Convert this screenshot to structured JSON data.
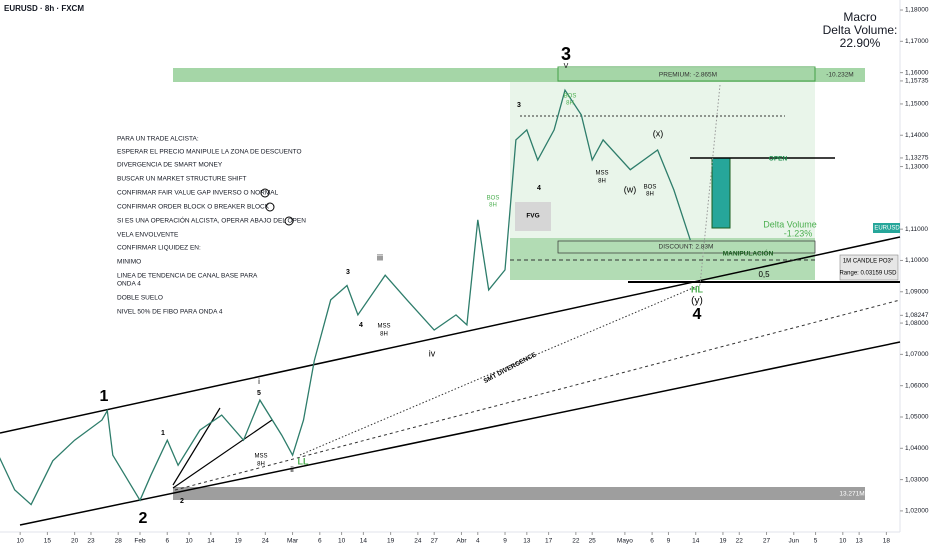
{
  "chart_data": {
    "type": "line",
    "title": "EURUSD · 8h · FXCM",
    "macro": [
      "Macro",
      "Delta Volume:",
      "22.90%"
    ],
    "xlim": [
      5.3,
      170.5
    ],
    "ylim": [
      1.0139,
      1.1832
    ],
    "xticks": [
      {
        "value": 9,
        "label": "10"
      },
      {
        "value": 14,
        "label": "15"
      },
      {
        "value": 19,
        "label": "20"
      },
      {
        "value": 22,
        "label": "23"
      },
      {
        "value": 27,
        "label": "28"
      },
      {
        "value": 31,
        "label": "Feb"
      },
      {
        "value": 36,
        "label": "6"
      },
      {
        "value": 40,
        "label": "10"
      },
      {
        "value": 44,
        "label": "14"
      },
      {
        "value": 49,
        "label": "19"
      },
      {
        "value": 54,
        "label": "24"
      },
      {
        "value": 59,
        "label": "Mar"
      },
      {
        "value": 64,
        "label": "6"
      },
      {
        "value": 68,
        "label": "10"
      },
      {
        "value": 72,
        "label": "14"
      },
      {
        "value": 77,
        "label": "19"
      },
      {
        "value": 82,
        "label": "24"
      },
      {
        "value": 85,
        "label": "27"
      },
      {
        "value": 90,
        "label": "Abr"
      },
      {
        "value": 93,
        "label": "4"
      },
      {
        "value": 98,
        "label": "9"
      },
      {
        "value": 102,
        "label": "13"
      },
      {
        "value": 106,
        "label": "17"
      },
      {
        "value": 111,
        "label": "22"
      },
      {
        "value": 114,
        "label": "25"
      },
      {
        "value": 120,
        "label": "Mayo"
      },
      {
        "value": 125,
        "label": "6"
      },
      {
        "value": 128,
        "label": "9"
      },
      {
        "value": 133,
        "label": "14"
      },
      {
        "value": 138,
        "label": "19"
      },
      {
        "value": 141,
        "label": "22"
      },
      {
        "value": 146,
        "label": "27"
      },
      {
        "value": 151,
        "label": "Jun"
      },
      {
        "value": 155,
        "label": "5"
      },
      {
        "value": 160,
        "label": "10"
      },
      {
        "value": 163,
        "label": "13"
      },
      {
        "value": 168,
        "label": "18"
      }
    ],
    "yticks": [
      {
        "value": 1.18,
        "label": "1,18000"
      },
      {
        "value": 1.17,
        "label": "1,17000"
      },
      {
        "value": 1.16,
        "label": "1,16000"
      },
      {
        "value": 1.15735,
        "label": "1,15735"
      },
      {
        "value": 1.15,
        "label": "1,15000"
      },
      {
        "value": 1.14,
        "label": "1,14000"
      },
      {
        "value": 1.13275,
        "label": "1,13275"
      },
      {
        "value": 1.13,
        "label": "1,13000"
      },
      {
        "value": 1.11,
        "label": "1,11000"
      },
      {
        "value": 1.1,
        "label": "1,10000"
      },
      {
        "value": 1.09,
        "label": "1,09000"
      },
      {
        "value": 1.08247,
        "label": "1,08247"
      },
      {
        "value": 1.08,
        "label": "1,08000"
      },
      {
        "value": 1.07,
        "label": "1,07000"
      },
      {
        "value": 1.06,
        "label": "1,06000"
      },
      {
        "value": 1.05,
        "label": "1,05000"
      },
      {
        "value": 1.04,
        "label": "1,04000"
      },
      {
        "value": 1.03,
        "label": "1,03000"
      },
      {
        "value": 1.02,
        "label": "1,02000"
      }
    ],
    "series": [
      {
        "name": "EURUSD",
        "color": "#2e7d6b",
        "x": [
          5,
          8,
          11,
          15,
          19,
          24,
          25,
          26,
          31,
          33,
          36,
          38,
          42,
          46,
          50,
          53,
          57,
          59,
          61,
          63,
          66,
          69,
          71,
          76,
          80,
          85,
          89,
          91,
          93,
          95,
          98,
          100,
          102,
          104,
          107,
          109,
          112,
          114,
          116,
          121,
          126,
          129,
          132
        ],
        "values": [
          1.0378,
          1.0267,
          1.022,
          1.036,
          1.0426,
          1.049,
          1.052,
          1.0378,
          1.0234,
          1.0314,
          1.0426,
          1.0346,
          1.0458,
          1.0506,
          1.0426,
          1.0554,
          1.0442,
          1.0378,
          1.049,
          1.068,
          1.0874,
          1.092,
          1.0826,
          1.0953,
          1.0874,
          1.0778,
          1.0826,
          1.0794,
          1.113,
          1.0906,
          1.097,
          1.1385,
          1.1417,
          1.1321,
          1.1417,
          1.1544,
          1.1465,
          1.1321,
          1.1385,
          1.129,
          1.1353,
          1.1225,
          1.1065
        ]
      }
    ],
    "checklist": [
      "PARA UN TRADE ALCISTA:",
      "ESPERAR EL PRECIO MANIPULE LA ZONA DE DESCUENTO",
      "DIVERGENCIA DE SMART MONEY",
      "BUSCAR UN MARKET STRUCTURE SHIFT",
      "CONFIRMAR FAIR VALUE GAP INVERSO O NORMAL",
      "CONFIRMAR ORDER BLOCK O BREAKER BLOCK",
      "SI ES UNA OPERACIÓN ALCISTA, OPERAR ABAJO DEL OPEN",
      "VELA ENVOLVENTE",
      "CONFIRMAR LIQUIDEZ EN:",
      "MINIMO",
      "LINEA DE TENDENCIA DE CANAL BASE PARA",
      "ONDA 4",
      "DOBLE SUELO",
      "NIVEL 50% DE FIBO PARA ONDA 4"
    ],
    "annotations": [
      "3",
      "V",
      "PREMIUM: -2.865M",
      "-10.232M",
      "(x)",
      "(w)",
      "OPEN",
      "Delta Volume",
      "-1.23%",
      "DISCOUNT: 2.83M",
      "MANIPULACIÓN",
      "0,5",
      "HL",
      "(y)",
      "4",
      "FVG",
      "1",
      "2",
      "LL",
      "iii",
      "iv",
      "SMT DIVERGENCE",
      "13.271M",
      "1M CANDLE PO3*",
      "Range: 0.03159 USD",
      "EURUSD",
      "3",
      "4",
      "MSS",
      "8H",
      "BOS",
      "8H",
      "BOS",
      "8H",
      "MSS",
      "8H",
      "3",
      "4",
      "BOS",
      "8H",
      "MSS",
      "8H",
      "i",
      "ii",
      "5",
      "1",
      "2"
    ]
  }
}
